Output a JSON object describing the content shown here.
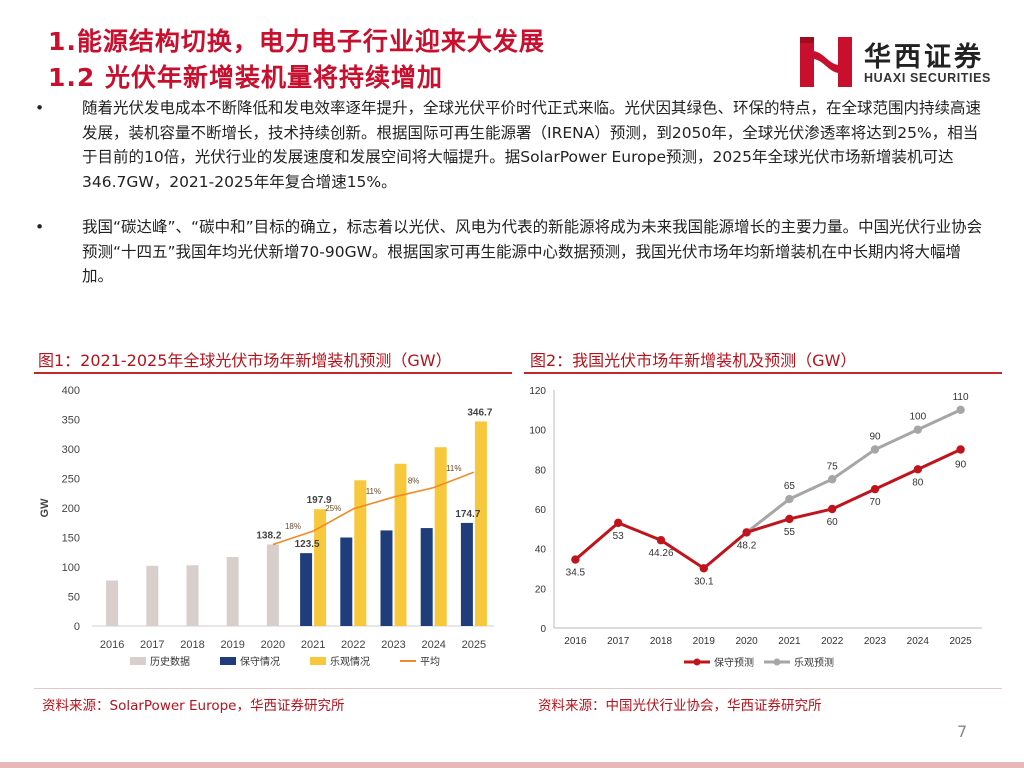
{
  "header": {
    "title_line1": "1.能源结构切换，电力电子行业迎来大发展",
    "title_line2": "1.2 光伏年新增装机量将持续增加",
    "title_color": "#c8102e"
  },
  "logo": {
    "cn": "华西证券",
    "en": "HUAXI SECURITIES",
    "brand_color": "#c8102e"
  },
  "bullets": [
    {
      "marker": "•",
      "text": "随着光伏发电成本不断降低和发电效率逐年提升，全球光伏平价时代正式来临。光伏因其绿色、环保的特点，在全球范围内持续高速发展，装机容量不断增长，技术持续创新。根据国际可再生能源署（IRENA）预测，到2050年，全球光伏渗透率将达到25%，相当于目前的10倍，光伏行业的发展速度和发展空间将大幅提升。据SolarPower Europe预测，2025年全球光伏市场新增装机可达346.7GW，2021-2025年年复合增速15%。"
    },
    {
      "marker": "•",
      "text": "我国“碳达峰”、“碳中和”目标的确立，标志着以光伏、风电为代表的新能源将成为未来我国能源增长的主要力量。中国光伏行业协会预测“十四五”我国年均光伏新增70-90GW。根据国家可再生能源中心数据预测，我国光伏市场年均新增装机在中长期内将大幅增加。"
    }
  ],
  "figures": {
    "fig1_title": "图1：2021-2025年全球光伏市场年新增装机预测（GW）",
    "fig2_title": "图2：我国光伏市场年新增装机及预测（GW）",
    "fig1_source": "资料来源：SolarPower Europe，华西证券研究所",
    "fig2_source": "资料来源：中国光伏行业协会，华西证券研究所"
  },
  "page_number": "7",
  "chart_data": [
    {
      "type": "bar",
      "ylabel": "GW",
      "ylim": [
        0,
        400
      ],
      "yticks": [
        0,
        50,
        100,
        150,
        200,
        250,
        300,
        350,
        400
      ],
      "grid": false,
      "legend_position": "bottom",
      "categories": [
        "2016",
        "2017",
        "2018",
        "2019",
        "2020",
        "2021",
        "2022",
        "2023",
        "2024",
        "2025"
      ],
      "series": [
        {
          "name": "历史数据",
          "color": "#d8cfcc",
          "values": [
            77,
            102,
            103,
            117,
            138.2,
            null,
            null,
            null,
            null,
            null
          ]
        },
        {
          "name": "保守情况",
          "color": "#1f3d7a",
          "values": [
            null,
            null,
            null,
            null,
            null,
            123.5,
            150,
            162,
            166,
            174.7
          ]
        },
        {
          "name": "乐观情况",
          "color": "#f7c83b",
          "values": [
            null,
            null,
            null,
            null,
            null,
            197.9,
            247,
            275,
            303,
            346.7
          ]
        },
        {
          "name": "平均",
          "type": "line",
          "color": "#f08a24",
          "values": [
            null,
            null,
            null,
            null,
            138.2,
            160.7,
            198.5,
            218.5,
            234.5,
            260.7
          ]
        }
      ],
      "data_labels": [
        {
          "category": "2020",
          "value": 138.2,
          "text": "138.2"
        },
        {
          "category": "2021",
          "value": 123.5,
          "text": "123.5"
        },
        {
          "category": "2021",
          "value": 197.9,
          "text": "197.9"
        },
        {
          "category": "2025",
          "value": 174.7,
          "text": "174.7"
        },
        {
          "category": "2025",
          "value": 346.7,
          "text": "346.7"
        }
      ],
      "growth_labels": [
        {
          "category": "2020",
          "text": "18%"
        },
        {
          "category": "2021",
          "text": "25%"
        },
        {
          "category": "2022",
          "text": "11%"
        },
        {
          "category": "2023",
          "text": "8%"
        },
        {
          "category": "2024",
          "text": "11%"
        }
      ]
    },
    {
      "type": "line",
      "ylim": [
        0,
        120
      ],
      "yticks": [
        0,
        20,
        40,
        60,
        80,
        100,
        120
      ],
      "grid": false,
      "legend_position": "bottom",
      "categories": [
        "2016",
        "2017",
        "2018",
        "2019",
        "2020",
        "2021",
        "2022",
        "2023",
        "2024",
        "2025"
      ],
      "series": [
        {
          "name": "保守预测",
          "color": "#c0141c",
          "values": [
            34.5,
            53,
            44.26,
            30.1,
            48.2,
            55,
            60,
            70,
            80,
            90
          ],
          "labels": [
            "34.5",
            "53",
            "44.26",
            "30.1",
            "48.2",
            "55",
            "60",
            "70",
            "80",
            "90"
          ]
        },
        {
          "name": "乐观预测",
          "color": "#a6a6a6",
          "values": [
            null,
            null,
            null,
            null,
            48.2,
            65,
            75,
            90,
            100,
            110
          ],
          "labels": [
            "",
            "",
            "",
            "",
            "",
            "65",
            "75",
            "90",
            "100",
            "110"
          ]
        }
      ]
    }
  ]
}
